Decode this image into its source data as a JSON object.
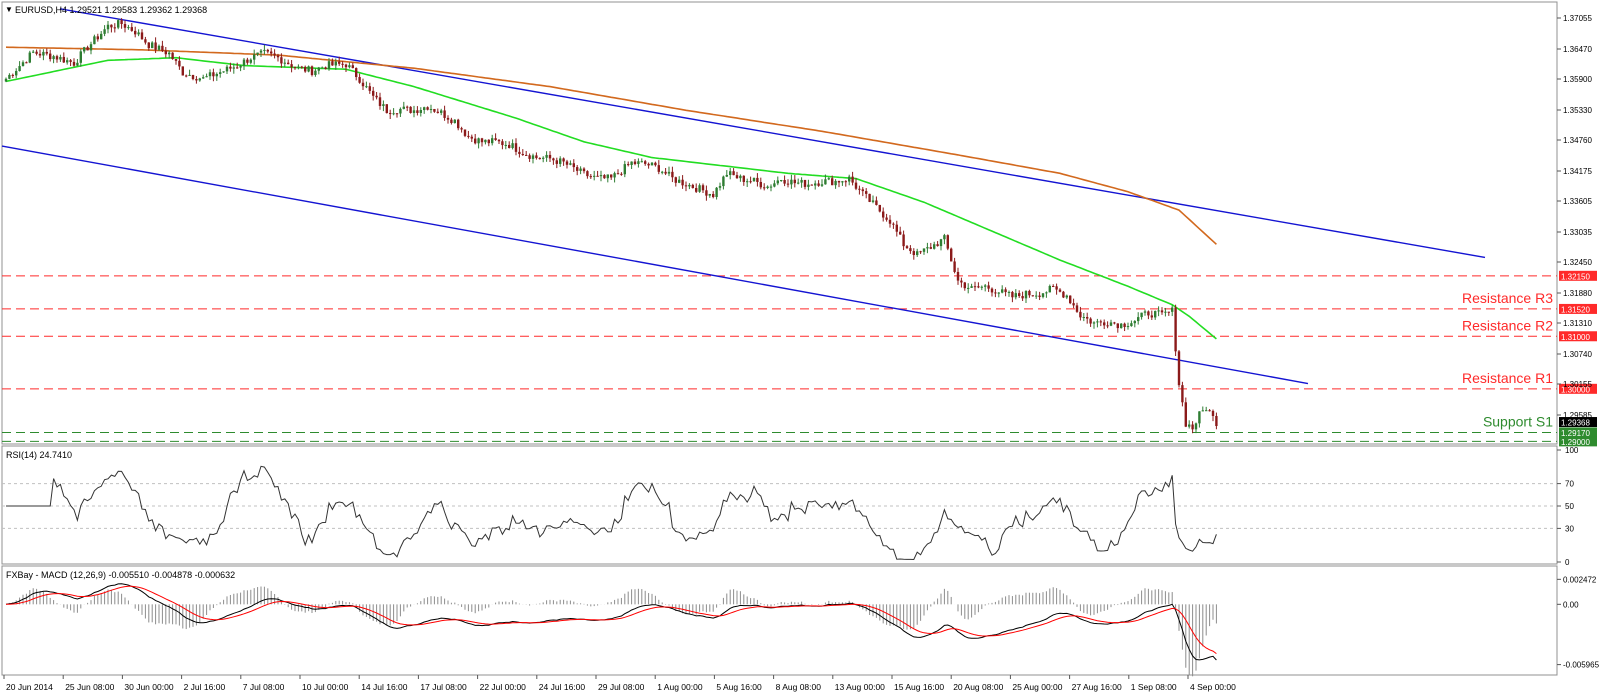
{
  "colors": {
    "background": "#ffffff",
    "grid": "#c0c0c0",
    "bull_candle": "#2e7d32",
    "bear_candle": "#8b1a1a",
    "channel": "#1414d2",
    "sma_fast": "#22dd22",
    "sma_slow": "#d2691e",
    "resistance": "#ff2a2a",
    "support": "#2e8b2e",
    "rsi_line": "#333333",
    "macd_line": "#000000",
    "signal_line": "#ff0000",
    "histogram": "#8c8c8c"
  },
  "header": {
    "symbol_text": "EURUSD,H4  1.29521 1.29583 1.29362 1.29368"
  },
  "price_panel": {
    "y_ticks": [
      "1.37055",
      "1.36470",
      "1.35900",
      "1.35330",
      "1.34760",
      "1.34175",
      "1.33605",
      "1.33035",
      "1.32450",
      "1.31880",
      "1.31310",
      "1.30740",
      "1.30155",
      "1.29585"
    ],
    "levels": [
      {
        "value": 1.3215,
        "label": "1.32150",
        "kind": "resistance",
        "name": ""
      },
      {
        "value": 1.3152,
        "label": "1.31520",
        "kind": "resistance",
        "name": "Resistance R3"
      },
      {
        "value": 1.31,
        "label": "1.31000",
        "kind": "resistance",
        "name": "Resistance R2"
      },
      {
        "value": 1.3,
        "label": "1.30000",
        "kind": "resistance",
        "name": "Resistance R1"
      },
      {
        "value": 1.2917,
        "label": "1.29170",
        "kind": "support",
        "name": "Support S1"
      },
      {
        "value": 1.29,
        "label": "1.29000",
        "kind": "support",
        "name": ""
      }
    ],
    "current_price": {
      "value": 1.29368,
      "label": "1.29368"
    }
  },
  "rsi_panel": {
    "title": "RSI(14) 24.7410",
    "y_ticks": [
      "100",
      "70",
      "50",
      "30",
      "0"
    ]
  },
  "macd_panel": {
    "title": "FXBay - MACD (12,26,9) -0.005510 -0.004878 -0.000632",
    "y_ticks": [
      "0.002472",
      "0.00",
      "-0.005965"
    ]
  },
  "x_axis": {
    "labels": [
      "20 Jun 2014",
      "25 Jun 08:00",
      "30 Jun 00:00",
      "2 Jul 16:00",
      "7 Jul 08:00",
      "10 Jul 00:00",
      "14 Jul 16:00",
      "17 Jul 08:00",
      "22 Jul 00:00",
      "24 Jul 16:00",
      "29 Jul 08:00",
      "1 Aug 00:00",
      "5 Aug 16:00",
      "8 Aug 08:00",
      "13 Aug 00:00",
      "15 Aug 16:00",
      "20 Aug 08:00",
      "25 Aug 00:00",
      "27 Aug 16:00",
      "1 Sep 08:00",
      "4 Sep 00:00"
    ]
  },
  "chart_data": {
    "type": "candlestick",
    "symbol": "EURUSD",
    "timeframe": "H4",
    "ohlc_last": {
      "open": 1.29521,
      "high": 1.29583,
      "low": 1.29362,
      "close": 1.29368
    },
    "anchors": [
      [
        0,
        1.359
      ],
      [
        4,
        1.3615
      ],
      [
        8,
        1.364
      ],
      [
        14,
        1.3633
      ],
      [
        20,
        1.362
      ],
      [
        24,
        1.365
      ],
      [
        30,
        1.369
      ],
      [
        34,
        1.3695
      ],
      [
        38,
        1.368
      ],
      [
        42,
        1.3655
      ],
      [
        48,
        1.3638
      ],
      [
        52,
        1.3602
      ],
      [
        58,
        1.359
      ],
      [
        62,
        1.36
      ],
      [
        68,
        1.3615
      ],
      [
        72,
        1.363
      ],
      [
        76,
        1.3638
      ],
      [
        80,
        1.363
      ],
      [
        86,
        1.361
      ],
      [
        90,
        1.3605
      ],
      [
        94,
        1.3615
      ],
      [
        100,
        1.3618
      ],
      [
        104,
        1.359
      ],
      [
        108,
        1.3555
      ],
      [
        112,
        1.353
      ],
      [
        116,
        1.3532
      ],
      [
        120,
        1.353
      ],
      [
        124,
        1.3538
      ],
      [
        128,
        1.3525
      ],
      [
        132,
        1.351
      ],
      [
        136,
        1.348
      ],
      [
        140,
        1.347
      ],
      [
        144,
        1.347
      ],
      [
        148,
        1.3465
      ],
      [
        152,
        1.345
      ],
      [
        156,
        1.344
      ],
      [
        160,
        1.3438
      ],
      [
        164,
        1.343
      ],
      [
        170,
        1.3408
      ],
      [
        174,
        1.34
      ],
      [
        178,
        1.34
      ],
      [
        184,
        1.343
      ],
      [
        188,
        1.3428
      ],
      [
        192,
        1.342
      ],
      [
        196,
        1.34
      ],
      [
        200,
        1.339
      ],
      [
        204,
        1.338
      ],
      [
        208,
        1.337
      ],
      [
        212,
        1.341
      ],
      [
        216,
        1.34
      ],
      [
        220,
        1.3395
      ],
      [
        224,
        1.3385
      ],
      [
        228,
        1.34
      ],
      [
        232,
        1.3392
      ],
      [
        236,
        1.339
      ],
      [
        240,
        1.3395
      ],
      [
        244,
        1.3395
      ],
      [
        248,
        1.34
      ],
      [
        252,
        1.337
      ],
      [
        256,
        1.3345
      ],
      [
        260,
        1.332
      ],
      [
        264,
        1.3275
      ],
      [
        268,
        1.3255
      ],
      [
        272,
        1.327
      ],
      [
        276,
        1.3285
      ],
      [
        280,
        1.3205
      ],
      [
        284,
        1.319
      ],
      [
        288,
        1.3195
      ],
      [
        292,
        1.3185
      ],
      [
        296,
        1.3175
      ],
      [
        300,
        1.318
      ],
      [
        304,
        1.3182
      ],
      [
        308,
        1.319
      ],
      [
        312,
        1.3178
      ],
      [
        316,
        1.314
      ],
      [
        320,
        1.3125
      ],
      [
        324,
        1.3128
      ],
      [
        328,
        1.3122
      ],
      [
        332,
        1.313
      ],
      [
        336,
        1.3145
      ],
      [
        340,
        1.314
      ],
      [
        343,
        1.3148
      ],
      [
        345,
        1.301
      ],
      [
        347,
        1.2935
      ],
      [
        349,
        1.2925
      ],
      [
        351,
        1.295
      ],
      [
        353,
        1.2965
      ],
      [
        355,
        1.2945
      ],
      [
        356,
        1.2937
      ]
    ],
    "sma_fast": [
      [
        0,
        1.3585
      ],
      [
        30,
        1.3625
      ],
      [
        50,
        1.363
      ],
      [
        70,
        1.3615
      ],
      [
        100,
        1.3608
      ],
      [
        120,
        1.3575
      ],
      [
        150,
        1.3515
      ],
      [
        170,
        1.347
      ],
      [
        190,
        1.344
      ],
      [
        210,
        1.3425
      ],
      [
        230,
        1.341
      ],
      [
        250,
        1.34
      ],
      [
        270,
        1.3355
      ],
      [
        290,
        1.33
      ],
      [
        310,
        1.3245
      ],
      [
        330,
        1.3195
      ],
      [
        343,
        1.316
      ],
      [
        348,
        1.3138
      ],
      [
        356,
        1.3095
      ]
    ],
    "sma_slow": [
      [
        0,
        1.365
      ],
      [
        40,
        1.3645
      ],
      [
        80,
        1.3635
      ],
      [
        120,
        1.361
      ],
      [
        160,
        1.3575
      ],
      [
        200,
        1.353
      ],
      [
        240,
        1.349
      ],
      [
        280,
        1.3445
      ],
      [
        310,
        1.341
      ],
      [
        330,
        1.3375
      ],
      [
        345,
        1.334
      ],
      [
        356,
        1.3275
      ]
    ],
    "channel_upper": [
      [
        1.3723,
        "start"
      ],
      [
        1.325,
        "end"
      ]
    ],
    "channel_lower": [
      [
        1.3462,
        "start"
      ],
      [
        1.301,
        "end"
      ]
    ],
    "rsi_value": 24.741,
    "rsi_levels": [
      70,
      50,
      30
    ],
    "macd_value": -0.00551,
    "signal_value": -0.004878,
    "histogram_value": -0.000632
  }
}
